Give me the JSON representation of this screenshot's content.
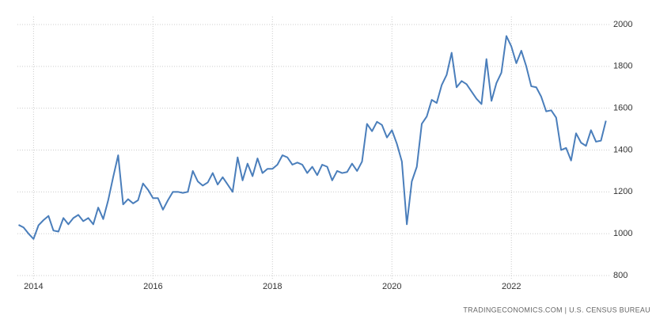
{
  "chart_data": {
    "type": "line",
    "source": "TRADINGECONOMICS.COM | U.S. CENSUS BUREAU",
    "x": [
      2013.75,
      2013.833,
      2013.917,
      2014,
      2014.083,
      2014.167,
      2014.25,
      2014.333,
      2014.417,
      2014.5,
      2014.583,
      2014.667,
      2014.75,
      2014.833,
      2014.917,
      2015,
      2015.083,
      2015.167,
      2015.25,
      2015.333,
      2015.417,
      2015.5,
      2015.583,
      2015.667,
      2015.75,
      2015.833,
      2015.917,
      2016,
      2016.083,
      2016.167,
      2016.25,
      2016.333,
      2016.417,
      2016.5,
      2016.583,
      2016.667,
      2016.75,
      2016.833,
      2016.917,
      2017,
      2017.083,
      2017.167,
      2017.25,
      2017.333,
      2017.417,
      2017.5,
      2017.583,
      2017.667,
      2017.75,
      2017.833,
      2017.917,
      2018,
      2018.083,
      2018.167,
      2018.25,
      2018.333,
      2018.417,
      2018.5,
      2018.583,
      2018.667,
      2018.75,
      2018.833,
      2018.917,
      2019,
      2019.083,
      2019.167,
      2019.25,
      2019.333,
      2019.417,
      2019.5,
      2019.583,
      2019.667,
      2019.75,
      2019.833,
      2019.917,
      2020,
      2020.083,
      2020.167,
      2020.25,
      2020.333,
      2020.417,
      2020.5,
      2020.583,
      2020.667,
      2020.75,
      2020.833,
      2020.917,
      2021,
      2021.083,
      2021.167,
      2021.25,
      2021.333,
      2021.417,
      2021.5,
      2021.583,
      2021.667,
      2021.75,
      2021.833,
      2021.917,
      2022,
      2022.083,
      2022.167,
      2022.25,
      2022.333,
      2022.417,
      2022.5,
      2022.583,
      2022.667,
      2022.75,
      2022.833,
      2022.917,
      2023,
      2023.083,
      2023.167,
      2023.25,
      2023.333,
      2023.417,
      2023.5,
      2023.583
    ],
    "series": [
      {
        "color": "#4a7ebb",
        "values": [
          1042,
          1030,
          1000,
          975,
          1040,
          1065,
          1085,
          1015,
          1010,
          1075,
          1045,
          1075,
          1090,
          1060,
          1075,
          1045,
          1125,
          1070,
          1160,
          1270,
          1375,
          1140,
          1165,
          1145,
          1160,
          1240,
          1210,
          1170,
          1170,
          1115,
          1160,
          1200,
          1200,
          1195,
          1200,
          1300,
          1250,
          1230,
          1245,
          1290,
          1235,
          1270,
          1235,
          1200,
          1365,
          1255,
          1335,
          1275,
          1360,
          1290,
          1310,
          1310,
          1330,
          1375,
          1365,
          1330,
          1340,
          1330,
          1290,
          1320,
          1280,
          1330,
          1320,
          1255,
          1300,
          1290,
          1295,
          1335,
          1300,
          1345,
          1525,
          1490,
          1535,
          1520,
          1460,
          1495,
          1430,
          1345,
          1045,
          1250,
          1320,
          1525,
          1560,
          1640,
          1625,
          1710,
          1760,
          1865,
          1700,
          1730,
          1715,
          1680,
          1645,
          1620,
          1835,
          1635,
          1720,
          1770,
          1945,
          1895,
          1815,
          1875,
          1800,
          1705,
          1700,
          1655,
          1585,
          1590,
          1555,
          1400,
          1410,
          1350,
          1480,
          1435,
          1420,
          1495,
          1440,
          1445,
          1540
        ]
      }
    ],
    "xlim": [
      2013.73,
      2023.64
    ],
    "xticks": [
      2014,
      2016,
      2018,
      2020,
      2022
    ],
    "ylim": [
      800,
      2000
    ],
    "yticks": [
      800,
      1000,
      1200,
      1400,
      1600,
      1800,
      2000
    ],
    "grid": true
  }
}
